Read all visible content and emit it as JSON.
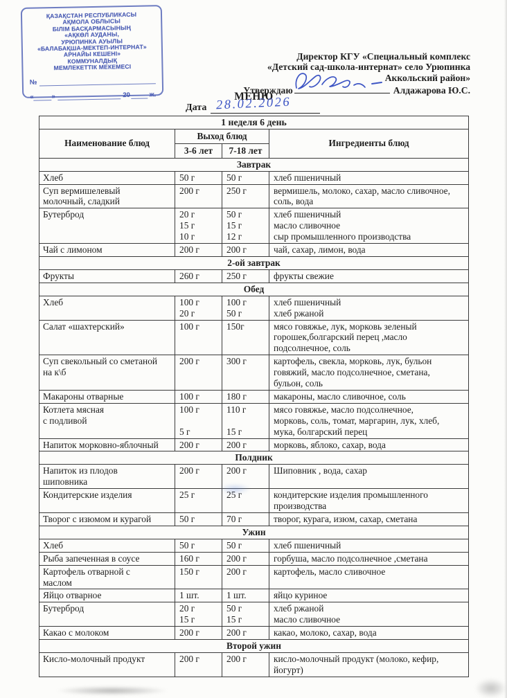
{
  "ink_colors": {
    "stamp_blue": "#4a5cb4",
    "pen_blue": "#3d55c4",
    "text_black": "#1f1f1f"
  },
  "stamp": {
    "org_lines": [
      "ҚАЗАҚСТАН РЕСПУБЛИКАСЫ",
      "АҚМОЛА ОБЛЫСЫ",
      "БІЛІМ БАСҚАРМАСЫНЫҢ",
      "«АҚКӨЛ АУДАНЫ,",
      "УРЮПИНКА АУЫЛЫ",
      "«БАЛАБАҚША-МЕКТЕП-ИНТЕРНАТ»",
      "АРНАЙЫ КЕШЕНІ»",
      "КОММУНАЛДЫҚ",
      "МЕМЛЕКЕТТІК МЕКЕМЕСІ"
    ],
    "number_label": "№",
    "date_quote_open": "«",
    "date_quote_close": "»",
    "date_year": "20",
    "date_year_suffix": "ж."
  },
  "approval": {
    "line1": "Директор КГУ «Специальный комплекс",
    "line2": "«Детский сад-школа-интернат» село Урюпинка",
    "line3": "Аккольский район»",
    "approve_label": "Утверждаю",
    "approver_name": "Алдажарова Ю.С."
  },
  "title": "МЕНЮ",
  "date_label": "Дата",
  "date_value": "28.02.2026",
  "week_line": "1 неделя  6 день",
  "table": {
    "headers": {
      "name": "Наименование блюд",
      "output": "Выход блюд",
      "age1": "3-6 лет",
      "age2": "7-18 лет",
      "ingredients": "Ингредиенты блюд"
    },
    "rows": [
      {
        "type": "section",
        "label": "Завтрак"
      },
      {
        "type": "item",
        "name": [
          "Хлеб"
        ],
        "w1": [
          "50 г"
        ],
        "w2": [
          "50 г"
        ],
        "ing": [
          "хлеб пшеничный"
        ]
      },
      {
        "type": "item",
        "name": [
          "Суп вермишелевый",
          "молочный, сладкий"
        ],
        "w1": [
          "200 г"
        ],
        "w2": [
          "250 г"
        ],
        "ing": [
          "вермишель, молоко, сахар, масло сливочное,",
          "соль, вода"
        ]
      },
      {
        "type": "item",
        "name": [
          "Бутерброд"
        ],
        "w1": [
          "20 г",
          "15 г",
          "10 г"
        ],
        "w2": [
          "50 г",
          "15 г",
          "12 г"
        ],
        "ing": [
          "хлеб пшеничный",
          "масло сливочное",
          "сыр промышленного производства"
        ]
      },
      {
        "type": "item",
        "name": [
          "Чай с лимоном"
        ],
        "w1": [
          "200 г"
        ],
        "w2": [
          "200 г"
        ],
        "ing": [
          "чай, сахар, лимон, вода"
        ]
      },
      {
        "type": "section",
        "label": "2-ой завтрак"
      },
      {
        "type": "item",
        "name": [
          "Фрукты"
        ],
        "w1": [
          "260 г"
        ],
        "w2": [
          "250 г"
        ],
        "ing": [
          "фрукты свежие"
        ]
      },
      {
        "type": "section",
        "label": "Обед"
      },
      {
        "type": "item",
        "name": [
          "Хлеб"
        ],
        "w1": [
          "100 г",
          "20 г"
        ],
        "w2": [
          "100 г",
          "50 г"
        ],
        "ing": [
          "хлеб пшеничный",
          "хлеб ржаной"
        ]
      },
      {
        "type": "item",
        "name": [
          "Салат «шахтерский»"
        ],
        "w1": [
          "100 г"
        ],
        "w2": [
          "150г"
        ],
        "ing": [
          "мясо говяжье, лук, морковь зеленый",
          "горошек,болгарский перец ,масло",
          "подсолнечное, соль"
        ]
      },
      {
        "type": "item",
        "name": [
          "Суп свекольный со сметаной",
          "на к\\б"
        ],
        "w1": [
          "200 г"
        ],
        "w2": [
          "300 г"
        ],
        "ing": [
          "картофель, свекла, морковь, лук, бульон",
          "говяжий, масло подсолнечное, сметана,",
          "бульон, соль"
        ]
      },
      {
        "type": "item",
        "name": [
          "Макароны отварные"
        ],
        "w1": [
          "100 г"
        ],
        "w2": [
          "180 г"
        ],
        "ing": [
          "макароны, масло сливочное, соль"
        ]
      },
      {
        "type": "item",
        "name": [
          "Котлета мясная",
          "с подливой"
        ],
        "w1": [
          "100 г",
          "",
          "5 г"
        ],
        "w2": [
          "110 г",
          "",
          "15 г"
        ],
        "ing": [
          "мясо говяжье, масло подсолнечное,",
          "морковь, соль, томат, маргарин, лук, хлеб,",
          "мука, болгарский перец"
        ]
      },
      {
        "type": "item",
        "name": [
          "Напиток морковно-яблочный"
        ],
        "w1": [
          "200 г"
        ],
        "w2": [
          "200 г"
        ],
        "ing": [
          "морковь, яблоко, сахар, вода"
        ]
      },
      {
        "type": "section",
        "label": "Полдник"
      },
      {
        "type": "item",
        "name": [
          "Напиток из плодов",
          "шиповника"
        ],
        "w1": [
          "200 г"
        ],
        "w2": [
          "200 г"
        ],
        "ing": [
          "Шиповник , вода, сахар"
        ]
      },
      {
        "type": "item",
        "name": [
          "Кондитерские изделия"
        ],
        "w1": [
          "25 г"
        ],
        "w2": [
          "25 г"
        ],
        "ing": [
          "кондитерские изделия промышленного",
          "производства"
        ]
      },
      {
        "type": "item",
        "name": [
          "Творог с изюмом и курагой"
        ],
        "w1": [
          "50 г"
        ],
        "w2": [
          "70 г"
        ],
        "ing": [
          "творог, курага, изюм, сахар, сметана"
        ]
      },
      {
        "type": "section",
        "label": "Ужин"
      },
      {
        "type": "item",
        "name": [
          "Хлеб"
        ],
        "w1": [
          "50 г"
        ],
        "w2": [
          "50 г"
        ],
        "ing": [
          "хлеб пшеничный"
        ]
      },
      {
        "type": "item",
        "name": [
          "Рыба запеченная в соусе"
        ],
        "w1": [
          "160 г"
        ],
        "w2": [
          "200 г"
        ],
        "ing": [
          "горбуша, масло подсолнечное ,сметана"
        ]
      },
      {
        "type": "item",
        "name": [
          "Картофель отварной с",
          "маслом"
        ],
        "w1": [
          "150 г"
        ],
        "w2": [
          "200 г"
        ],
        "ing": [
          "картофель, масло сливочное"
        ]
      },
      {
        "type": "item",
        "name": [
          "Яйцо отварное"
        ],
        "w1": [
          "1 шт."
        ],
        "w2": [
          "1 шт."
        ],
        "ing": [
          "яйцо куриное"
        ]
      },
      {
        "type": "item",
        "name": [
          "Бутерброд"
        ],
        "w1": [
          "20 г",
          "15 г"
        ],
        "w2": [
          "50 г",
          "15 г"
        ],
        "ing": [
          "хлеб ржаной",
          "масло сливочное"
        ]
      },
      {
        "type": "item",
        "name": [
          "Какао с молоком"
        ],
        "w1": [
          "200 г"
        ],
        "w2": [
          "200 г"
        ],
        "ing": [
          "какао, молоко, сахар, вода"
        ]
      },
      {
        "type": "section",
        "label": "Второй ужин"
      },
      {
        "type": "item",
        "name": [
          "Кисло-молочный продукт"
        ],
        "w1": [
          "200 г"
        ],
        "w2": [
          "200 г"
        ],
        "ing": [
          "кисло-молочный продукт (молоко, кефир,",
          "йогурт)"
        ]
      }
    ]
  }
}
